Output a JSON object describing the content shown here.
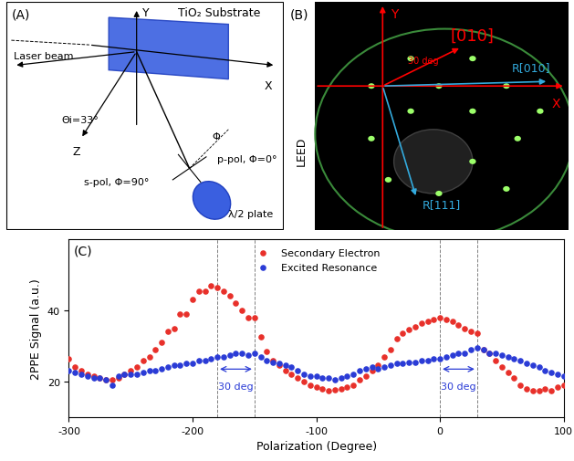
{
  "panels": {
    "A": {
      "label": "(A)",
      "substrate": "TiO₂ Substrate",
      "x_axis": "X",
      "y_axis": "Y",
      "z_axis": "Z",
      "beam": "Laser beam",
      "angle": "Θi=33°",
      "phi": "Φ",
      "p_pol": "p-pol, Φ=0°",
      "s_pol": "s-pol, Φ=90°",
      "plate": "λ/2 plate"
    },
    "B": {
      "label": "(B)",
      "side_label": "LEED",
      "x_axis": "X",
      "y_axis": "Y",
      "direction": "[010]",
      "angle": "30 deg",
      "r010": "R[010]",
      "r111": "R[111]"
    }
  },
  "chart_data": {
    "type": "scatter",
    "panel_label": "(C)",
    "xlabel": "Polarization (Degree)",
    "ylabel": "2PPE Signal (a.u.)",
    "x": [
      -300,
      -295,
      -290,
      -285,
      -280,
      -275,
      -270,
      -265,
      -260,
      -255,
      -250,
      -245,
      -240,
      -235,
      -230,
      -225,
      -220,
      -215,
      -210,
      -205,
      -200,
      -195,
      -190,
      -185,
      -180,
      -175,
      -170,
      -165,
      -160,
      -155,
      -150,
      -145,
      -140,
      -135,
      -130,
      -125,
      -120,
      -115,
      -110,
      -105,
      -100,
      -95,
      -90,
      -85,
      -80,
      -75,
      -70,
      -65,
      -60,
      -55,
      -50,
      -45,
      -40,
      -35,
      -30,
      -25,
      -20,
      -15,
      -10,
      -5,
      0,
      5,
      10,
      15,
      20,
      25,
      30,
      35,
      40,
      45,
      50,
      55,
      60,
      65,
      70,
      75,
      80,
      85,
      90,
      95,
      100
    ],
    "series": [
      {
        "name": "Secondary Electron",
        "color": "#e8302a",
        "marker": "o",
        "values": [
          26.5,
          24,
          23,
          22,
          21.5,
          21,
          20.5,
          20.5,
          21,
          22,
          23,
          24,
          26,
          27,
          29,
          31,
          34,
          35,
          39,
          39,
          43,
          45.5,
          45.5,
          47,
          46.5,
          45.5,
          44,
          42,
          40,
          38,
          38,
          32.5,
          28.5,
          26,
          24.5,
          23,
          22,
          21,
          20,
          19,
          18.5,
          18,
          17.5,
          17.8,
          18,
          18.5,
          19,
          20.5,
          21.5,
          23,
          24.5,
          27,
          29,
          32,
          33.5,
          34.5,
          35.5,
          36.5,
          37,
          37.5,
          38,
          37.5,
          37,
          36,
          35,
          34,
          33.5,
          29,
          28,
          26,
          24,
          22.5,
          21,
          19,
          18,
          17.5,
          17.5,
          18,
          17.5,
          18.5,
          19
        ]
      },
      {
        "name": "Excited Resonance",
        "color": "#2a3bd6",
        "marker": "o",
        "values": [
          23,
          22.5,
          22,
          21.5,
          21,
          21,
          20.5,
          19,
          21.5,
          22,
          22,
          22,
          22.5,
          23,
          23,
          23.5,
          24,
          24.5,
          24.5,
          25,
          25,
          26,
          26,
          26.5,
          27,
          27,
          27.5,
          28,
          28,
          27.5,
          28,
          27,
          26,
          25.5,
          25,
          24.5,
          24,
          23,
          22,
          21.5,
          21.5,
          21,
          21,
          20.5,
          21,
          21.5,
          22,
          23,
          23.5,
          24,
          23.5,
          24,
          24.5,
          25,
          25,
          25.5,
          25.5,
          26,
          26,
          26.5,
          26.5,
          27,
          27.5,
          28,
          28,
          29,
          29.5,
          29,
          28,
          28,
          27.5,
          27,
          26.5,
          26,
          25,
          24.5,
          24,
          23,
          22.5,
          22,
          21.5
        ]
      }
    ],
    "xlim": [
      -300,
      100
    ],
    "xticks": [
      -300,
      -200,
      -100,
      0,
      100
    ],
    "ylim": [
      10,
      60
    ],
    "yticks": [
      20,
      40
    ],
    "legend": "upper center",
    "reference_lines": [
      -180,
      -150,
      0,
      30
    ],
    "annotations": [
      {
        "text": "30 deg",
        "x": [
          -180,
          -150
        ],
        "y": 23.5
      },
      {
        "text": "30 deg",
        "x": [
          0,
          30
        ],
        "y": 23.5
      }
    ]
  }
}
